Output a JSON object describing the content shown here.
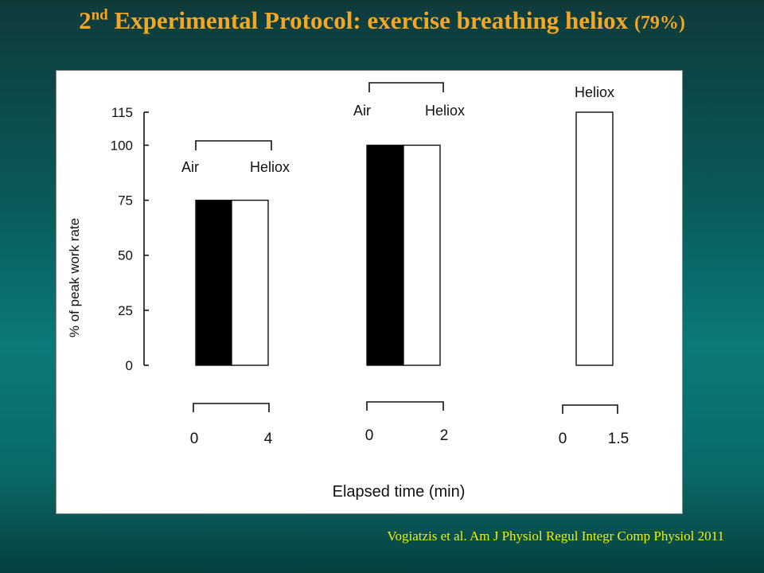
{
  "slide": {
    "title_prefix": "2",
    "title_sup": "nd",
    "title_main": " Experimental Protocol: exercise breathing heliox ",
    "title_suffix": "(79%)",
    "citation": "Vogiatzis et al. Am J Physiol Regul Integr Comp Physiol 2011"
  },
  "colors": {
    "title": "#f5a623",
    "citation": "#f0f000",
    "air": "#000000",
    "heliox": "#ffffff"
  },
  "chart_data": {
    "type": "bar",
    "ylabel": "% of peak work rate",
    "xlabel": "Elapsed time (min)",
    "ylim": [
      0,
      115
    ],
    "yticks": [
      0,
      25,
      50,
      75,
      100,
      115
    ],
    "ytick_labels": [
      "0",
      "25",
      "50",
      "75",
      "100",
      "115"
    ],
    "groups": [
      {
        "bars": [
          {
            "name": "Air",
            "value": 75,
            "color": "#000000"
          },
          {
            "name": "Heliox",
            "value": 75,
            "color": "#ffffff"
          }
        ],
        "time_start": "0",
        "time_end": "4"
      },
      {
        "bars": [
          {
            "name": "Air",
            "value": 100,
            "color": "#000000"
          },
          {
            "name": "Heliox",
            "value": 100,
            "color": "#ffffff"
          }
        ],
        "time_start": "0",
        "time_end": "2"
      },
      {
        "bars": [
          {
            "name": "Heliox",
            "value": 115,
            "color": "#ffffff"
          }
        ],
        "time_start": "0",
        "time_end": "1.5"
      }
    ]
  }
}
